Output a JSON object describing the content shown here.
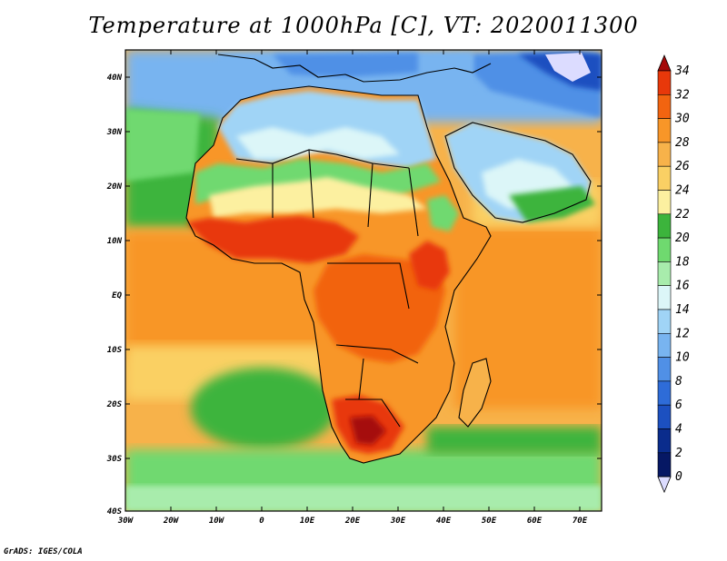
{
  "title": "Temperature at 1000hPa [C], VT: 2020011300",
  "credit": "GrADS: IGES/COLA",
  "map": {
    "lon_range": [
      -30,
      75
    ],
    "lat_range": [
      -40,
      45
    ],
    "lon_ticks": [
      "30W",
      "20W",
      "10W",
      "0",
      "10E",
      "20E",
      "30E",
      "40E",
      "50E",
      "60E",
      "70E"
    ],
    "lat_ticks": [
      "40N",
      "30N",
      "20N",
      "10N",
      "EQ",
      "10S",
      "20S",
      "30S",
      "40S"
    ]
  },
  "colorbar": {
    "levels": [
      "34",
      "32",
      "30",
      "28",
      "26",
      "24",
      "22",
      "20",
      "18",
      "16",
      "14",
      "12",
      "10",
      "8",
      "6",
      "4",
      "2",
      "0"
    ],
    "colors": [
      "#a50a0a",
      "#e8380a",
      "#f26410",
      "#f89628",
      "#f7b24a",
      "#fad064",
      "#fcf0a0",
      "#3cb43c",
      "#6fd96f",
      "#a8ecac",
      "#dcf6f8",
      "#a0d4f6",
      "#78b4f0",
      "#5090e6",
      "#2e6cd8",
      "#1c50c0",
      "#0a2c8c",
      "#061864",
      "#dcdcff"
    ]
  }
}
